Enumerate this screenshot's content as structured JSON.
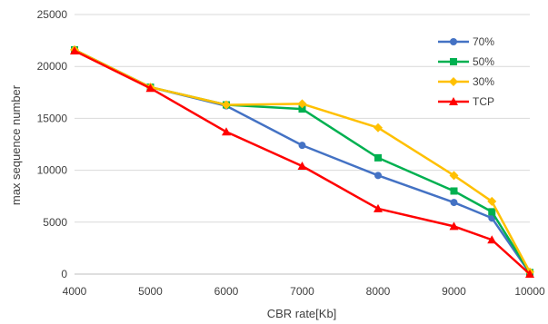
{
  "chart_data": {
    "type": "line",
    "xlabel": "CBR rate[Kb]",
    "ylabel": "max sequence number",
    "x": [
      4000,
      5000,
      6000,
      7000,
      8000,
      9000,
      9500,
      10000
    ],
    "x_ticks": [
      "4000",
      "5000",
      "6000",
      "7000",
      "8000",
      "9000",
      "10000"
    ],
    "xlim": [
      4000,
      10000
    ],
    "y_ticks": [
      "0",
      "5000",
      "10000",
      "15000",
      "20000",
      "25000"
    ],
    "ylim": [
      0,
      25000
    ],
    "grid": "horizontal",
    "legend_position": "top-right",
    "series": [
      {
        "name": "70%",
        "color": "#4472C4",
        "marker": "circle",
        "values": [
          21600,
          18000,
          16200,
          12400,
          9500,
          6900,
          5400,
          100
        ]
      },
      {
        "name": "50%",
        "color": "#00B050",
        "marker": "square",
        "values": [
          21600,
          18000,
          16300,
          15900,
          11200,
          8000,
          6000,
          150
        ]
      },
      {
        "name": "30%",
        "color": "#FFC000",
        "marker": "diamond",
        "values": [
          21600,
          18000,
          16300,
          16400,
          14100,
          9500,
          7000,
          200
        ]
      },
      {
        "name": "TCP",
        "color": "#FF0000",
        "marker": "triangle",
        "values": [
          21500,
          17900,
          13700,
          10400,
          6300,
          4600,
          3300,
          0
        ]
      }
    ]
  }
}
